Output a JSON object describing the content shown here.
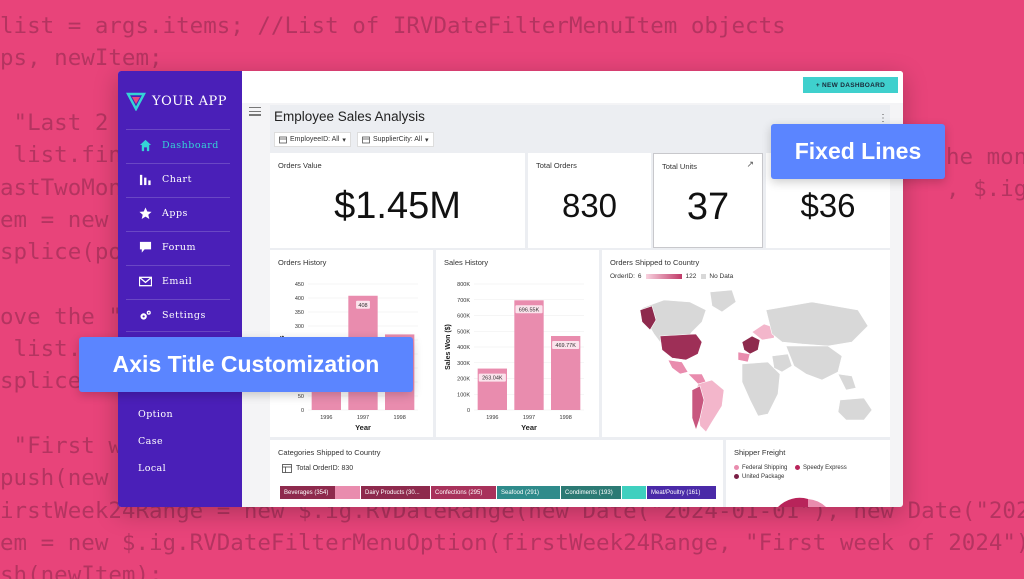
{
  "background_code": [
    "list = args.items; //List of IRVDateFilterMenuItem objects",
    "ps, newItem;",
    "",
    " \"Last 2 ",
    " list.find",
    "astTwoMont",
    "em = new $",
    "splice(pos",
    "",
    "ove the \"",
    " list.",
    "splice(",
    "",
    " \"First w",
    "push(new $",
    "irstWeek24Range = new $.ig.RVDateRange(new Date(\"2024-01-01\"), new Date(\"2024",
    "em = new $.ig.RVDateFilterMenuOption(firstWeek24Range, \"First week of 2024\")",
    "sh(newItem);"
  ],
  "background_code_right": [
    "he mon",
    ", $.ig.RV"
  ],
  "brand": {
    "name": "YOUR APP",
    "accent": "#35d3d6"
  },
  "sidebar": {
    "items": [
      {
        "label": "Dashboard",
        "icon": "home-icon"
      },
      {
        "label": "Chart",
        "icon": "bar-chart-icon"
      },
      {
        "label": "Apps",
        "icon": "star-icon"
      },
      {
        "label": "Forum",
        "icon": "chat-icon"
      },
      {
        "label": "Email",
        "icon": "mail-icon"
      },
      {
        "label": "Settings",
        "icon": "gear-icon"
      }
    ],
    "extra": [
      "Option",
      "Case",
      "Local"
    ]
  },
  "topbar": {
    "new_dashboard": "+ NEW DASHBOARD"
  },
  "dashboard": {
    "title": "Employee Sales Analysis",
    "filters": [
      "EmployeeID: All",
      "SupplierCity: All"
    ]
  },
  "kpis": {
    "orders_value": {
      "title": "Orders Value",
      "value": "$1.45M"
    },
    "total_orders": {
      "title": "Total Orders",
      "value": "830"
    },
    "total_units": {
      "title": "Total Units",
      "value": "37"
    },
    "freight": {
      "value": "$36"
    }
  },
  "chart_data": [
    {
      "type": "bar",
      "title": "Orders History",
      "categories": [
        "1996",
        "1997",
        "1998"
      ],
      "values": [
        152,
        408,
        270
      ],
      "data_labels": [
        "",
        "408",
        "270"
      ],
      "ylim": [
        0,
        450
      ],
      "yticks": [
        0,
        50,
        100,
        150,
        200,
        250,
        300,
        350,
        400,
        450
      ],
      "xlabel": "Year",
      "ylabel": "Orders",
      "color": "#e98cae"
    },
    {
      "type": "bar",
      "title": "Sales History",
      "categories": [
        "1996",
        "1997",
        "1998"
      ],
      "values": [
        263.04,
        696.55,
        469.77
      ],
      "data_labels": [
        "263.04K",
        "696.55K",
        "469.77K"
      ],
      "ylim": [
        0,
        800
      ],
      "yticks": [
        "0",
        "100K",
        "200K",
        "300K",
        "400K",
        "500K",
        "600K",
        "700K",
        "800K"
      ],
      "xlabel": "Year",
      "ylabel": "Sales Won ($)",
      "color": "#e98cae"
    }
  ],
  "map": {
    "title": "Orders Shipped to Country",
    "legend_label": "OrderID:",
    "legend_min": "6",
    "legend_max": "122",
    "legend_nodata": "No Data"
  },
  "categories_card": {
    "title": "Categories Shipped to Country",
    "total": "Total OrderID: 830",
    "cells": [
      {
        "label": "Beverages (354)",
        "color": "#8e2a4d"
      },
      {
        "label": "",
        "color": "#e98cae"
      },
      {
        "label": "Dairy Products (30...",
        "color": "#8e2a4d"
      },
      {
        "label": "Confections (295)",
        "color": "#a8325b"
      },
      {
        "label": "Seafood (291)",
        "color": "#2f8b8b"
      },
      {
        "label": "Condiments (193)",
        "color": "#2c7a74"
      },
      {
        "label": "",
        "color": "#3fd0bf"
      },
      {
        "label": "Meat/Poultry (161)",
        "color": "#4a2aa8"
      }
    ]
  },
  "shipper_card": {
    "title": "Shipper Freight",
    "legend": [
      {
        "label": "Federal Shipping",
        "color": "#e98cae"
      },
      {
        "label": "Speedy Express",
        "color": "#b8245a"
      },
      {
        "label": "United Package",
        "color": "#7a1f45"
      }
    ]
  },
  "callouts": {
    "fixed_lines": "Fixed Lines",
    "axis_title": "Axis Title Customization"
  }
}
